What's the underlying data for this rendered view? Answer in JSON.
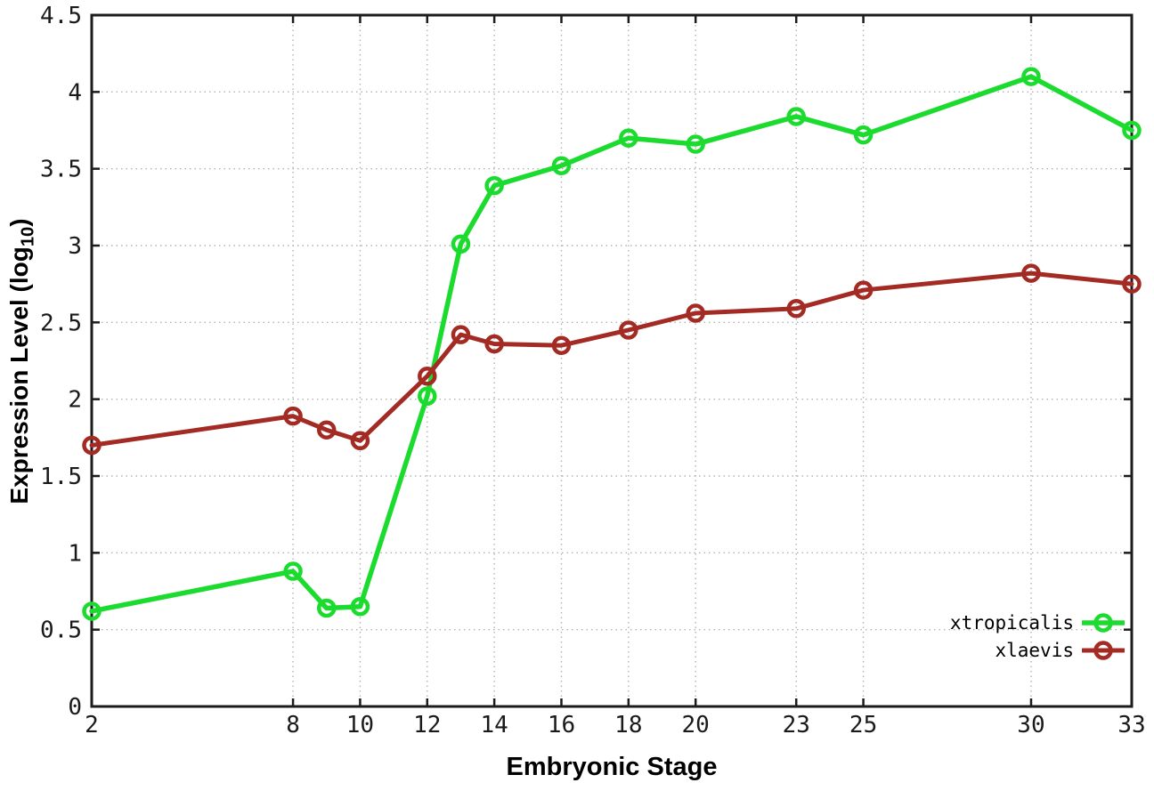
{
  "chart_data": {
    "type": "line",
    "title": "",
    "xlabel": "Embryonic Stage",
    "ylabel": {
      "prefix": "Expression Level (log",
      "subscript": "10",
      "suffix": ")"
    },
    "x": [
      2,
      8,
      9,
      10,
      12,
      13,
      14,
      16,
      18,
      20,
      23,
      25,
      30,
      33
    ],
    "series": [
      {
        "name": "xtropicalis",
        "color": "#1bdc2e",
        "line_width": 5.5,
        "values": [
          0.62,
          0.88,
          0.64,
          0.65,
          2.02,
          3.01,
          3.39,
          3.52,
          3.7,
          3.66,
          3.84,
          3.72,
          4.1,
          3.75
        ]
      },
      {
        "name": "xlaevis",
        "color": "#a32b23",
        "line_width": 5,
        "values": [
          1.7,
          1.89,
          1.8,
          1.73,
          2.15,
          2.42,
          2.36,
          2.35,
          2.45,
          2.56,
          2.59,
          2.71,
          2.82,
          2.75
        ]
      }
    ],
    "xlim": [
      2,
      33
    ],
    "ylim": [
      0,
      4.5
    ],
    "xticks": {
      "values": [
        2,
        8,
        10,
        12,
        14,
        16,
        18,
        20,
        23,
        25,
        30,
        33
      ],
      "labels": [
        "2",
        "8",
        "10",
        "12",
        "14",
        "16",
        "18",
        "20",
        "23",
        "25",
        "30",
        "33"
      ]
    },
    "yticks": {
      "values": [
        0,
        0.5,
        1,
        1.5,
        2,
        2.5,
        3,
        3.5,
        4,
        4.5
      ],
      "labels": [
        "0",
        "0.5",
        "1",
        "1.5",
        "2",
        "2.5",
        "3",
        "3.5",
        "4",
        "4.5"
      ]
    },
    "grid": true,
    "legend_position": "inside-bottom-right",
    "marker": "open-circle",
    "border_color": "#1c1c1c",
    "grid_color": "#b3b3b3"
  }
}
